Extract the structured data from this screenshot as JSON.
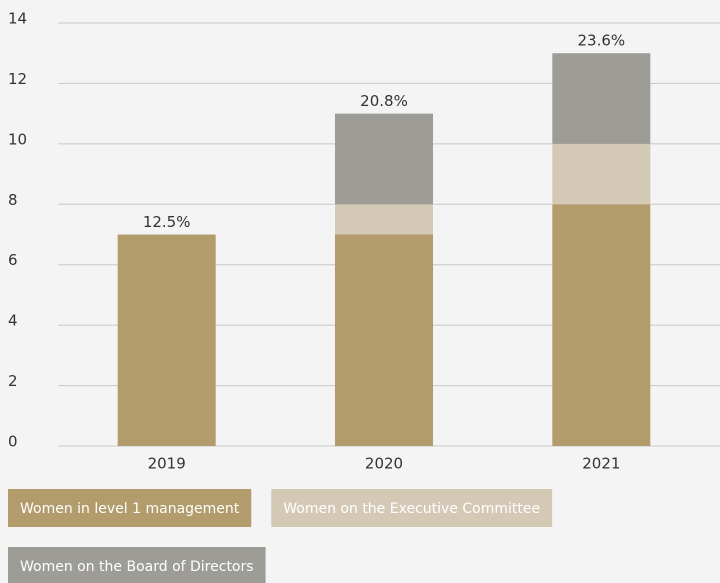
{
  "chart_data": {
    "type": "stacked_bar",
    "categories": [
      "2019",
      "2020",
      "2021"
    ],
    "series": [
      {
        "name": "Women in level 1 management",
        "color": "#b29c6b",
        "values": [
          7,
          7,
          8
        ]
      },
      {
        "name": "Women on the Executive Committee",
        "color": "#d4c9b4",
        "values": [
          0,
          1,
          2
        ]
      },
      {
        "name": "Women on the Board of Directors",
        "color": "#9d9c97",
        "values": [
          0,
          3,
          3
        ]
      }
    ],
    "annotations": [
      "12.5%",
      "20.8%",
      "23.6%"
    ],
    "ylim": [
      0,
      14
    ],
    "yticks": [
      0,
      2,
      4,
      6,
      8,
      10,
      12,
      14
    ],
    "grid": true
  }
}
